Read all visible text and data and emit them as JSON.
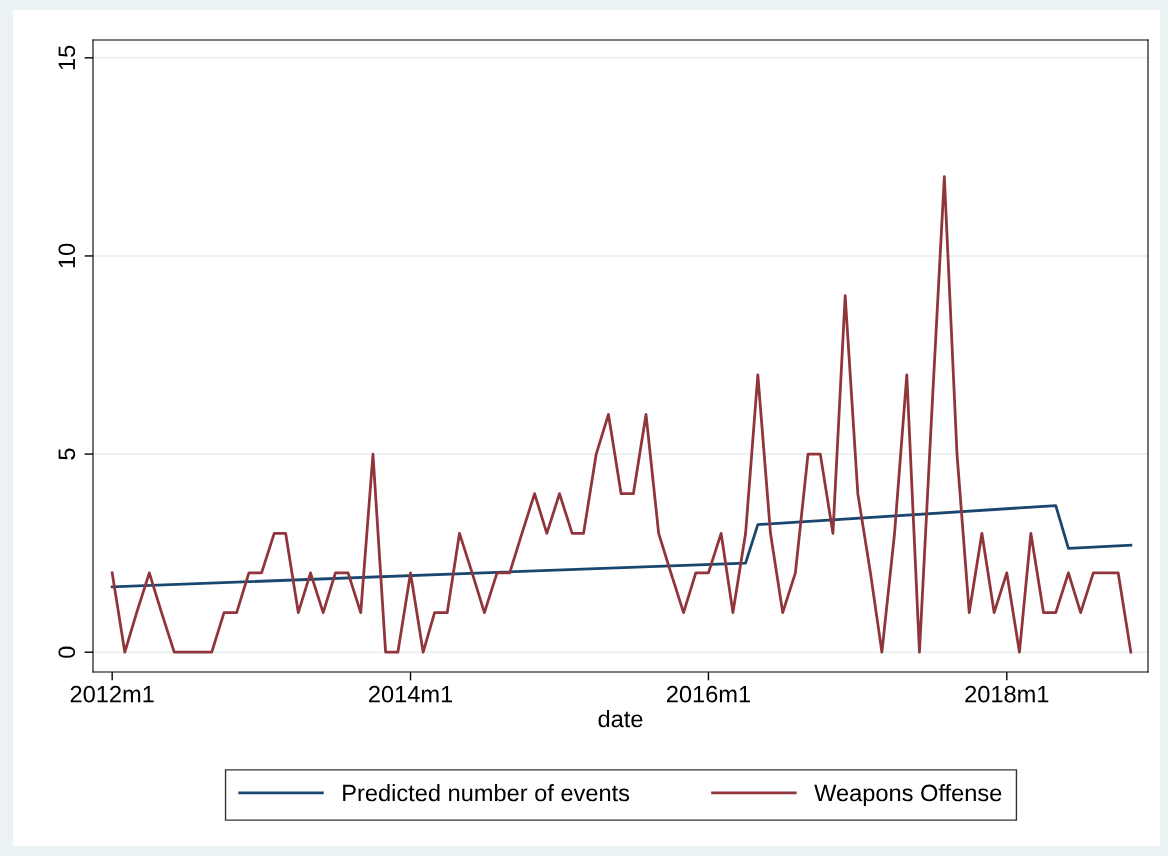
{
  "chart_data": {
    "type": "line",
    "xlabel": "date",
    "xlim": [
      "2011-11-15",
      "2018-12-13"
    ],
    "ylim": [
      -0.5,
      15.45
    ],
    "xticks": [
      {
        "value": "2012-01",
        "label": "2012m1"
      },
      {
        "value": "2014-01",
        "label": "2014m1"
      },
      {
        "value": "2016-01",
        "label": "2016m1"
      },
      {
        "value": "2018-01",
        "label": "2018m1"
      }
    ],
    "yticks": [
      0,
      5,
      10,
      15
    ],
    "grid": "y",
    "legend": "bottom",
    "marker": "none",
    "line_style": "solid",
    "series": [
      {
        "name": "Predicted number of events",
        "color": "#1a476f",
        "x": [
          "2012-01",
          "2016-04",
          "2016-05",
          "2018-05",
          "2018-06",
          "2018-11"
        ],
        "values": [
          1.65,
          2.25,
          3.22,
          3.7,
          2.62,
          2.7
        ]
      },
      {
        "name": "Weapons Offense",
        "color": "#90353b",
        "x": [
          "2012-01",
          "2012-02",
          "2012-03",
          "2012-04",
          "2012-05",
          "2012-06",
          "2012-07",
          "2012-08",
          "2012-09",
          "2012-10",
          "2012-11",
          "2012-12",
          "2013-01",
          "2013-02",
          "2013-03",
          "2013-04",
          "2013-05",
          "2013-06",
          "2013-07",
          "2013-08",
          "2013-09",
          "2013-10",
          "2013-11",
          "2013-12",
          "2014-01",
          "2014-02",
          "2014-03",
          "2014-04",
          "2014-05",
          "2014-06",
          "2014-07",
          "2014-08",
          "2014-09",
          "2014-10",
          "2014-11",
          "2014-12",
          "2015-01",
          "2015-02",
          "2015-03",
          "2015-04",
          "2015-05",
          "2015-06",
          "2015-07",
          "2015-08",
          "2015-09",
          "2015-10",
          "2015-11",
          "2015-12",
          "2016-01",
          "2016-02",
          "2016-03",
          "2016-04",
          "2016-05",
          "2016-06",
          "2016-07",
          "2016-08",
          "2016-09",
          "2016-10",
          "2016-11",
          "2016-12",
          "2017-01",
          "2017-02",
          "2017-03",
          "2017-04",
          "2017-05",
          "2017-06",
          "2017-07",
          "2017-08",
          "2017-09",
          "2017-10",
          "2017-11",
          "2017-12",
          "2018-01",
          "2018-02",
          "2018-03",
          "2018-04",
          "2018-05",
          "2018-06",
          "2018-07",
          "2018-08",
          "2018-09",
          "2018-10",
          "2018-11"
        ],
        "values": [
          2,
          0,
          1,
          2,
          1,
          0,
          0,
          0,
          0,
          1,
          1,
          2,
          2,
          3,
          3,
          1,
          2,
          1,
          2,
          2,
          1,
          5,
          0,
          0,
          2,
          0,
          1,
          1,
          3,
          2,
          1,
          2,
          2,
          3,
          4,
          3,
          4,
          3,
          3,
          5,
          6,
          4,
          4,
          6,
          3,
          2,
          1,
          2,
          2,
          3,
          1,
          3,
          7,
          3,
          1,
          2,
          5,
          5,
          3,
          9,
          4,
          2,
          0,
          3,
          7,
          0,
          6,
          12,
          5,
          1,
          3,
          1,
          2,
          0,
          3,
          1,
          1,
          2,
          1,
          2,
          2,
          2,
          0
        ]
      }
    ]
  }
}
